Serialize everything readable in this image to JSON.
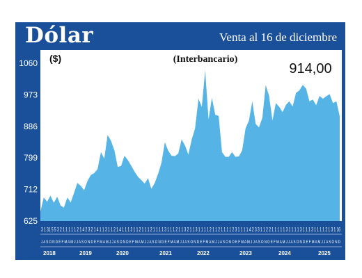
{
  "header": {
    "title": "Dólar",
    "subtitle": "Venta al 16 de diciembre"
  },
  "chart_data": {
    "type": "area",
    "title": "(Interbancario)",
    "unit_label": "($)",
    "last_value_label": "914,00",
    "y_ticks": [
      "1060",
      "973",
      "886",
      "799",
      "712",
      "625"
    ],
    "ylim": [
      625,
      1060
    ],
    "x_year_labels": [
      "2018",
      "2019",
      "2020",
      "2021",
      "2022",
      "2023",
      "2024",
      "2025"
    ],
    "x_day_labels": "3 1 31 5 5 3 2 1 1 1 1 1 2 1 4 2 3 2 1 4 1 1 3 1 1 2 1 4 1 1 1 3 1 1 2 1 1 1 2 1 1 1 1 3 1 1 1 2 1 1 3 2 1 1 3 1 1 1 1 2 1 1 2 1 1 1 1 2 3 1 1 1 1 4 2 3 3 1 1 2 2 1 1 1 1 1 3 1 1 1 1 3 1 1 1 3 1 1 1 1 2 1 3 1 16",
    "x_month_labels": "J A S O N D E F M A M J J A S O N D E F M A M J J A S O N D E F M A M J J A S O N D E F M A M J J A S O N D E F M A M J J A S O N D E F M A M J J A S O N D E F M A M J J A S O N D E F M A M J J A S O N D",
    "x": [
      "2018-07",
      "2018-08",
      "2018-09",
      "2018-10",
      "2018-11",
      "2018-12",
      "2019-01",
      "2019-02",
      "2019-03",
      "2019-04",
      "2019-05",
      "2019-06",
      "2019-07",
      "2019-08",
      "2019-09",
      "2019-10",
      "2019-11",
      "2019-12",
      "2020-01",
      "2020-02",
      "2020-03",
      "2020-04",
      "2020-05",
      "2020-06",
      "2020-07",
      "2020-08",
      "2020-09",
      "2020-10",
      "2020-11",
      "2020-12",
      "2021-01",
      "2021-02",
      "2021-03",
      "2021-04",
      "2021-05",
      "2021-06",
      "2021-07",
      "2021-08",
      "2021-09",
      "2021-10",
      "2021-11",
      "2021-12",
      "2022-01",
      "2022-02",
      "2022-03",
      "2022-04",
      "2022-05",
      "2022-06",
      "2022-07",
      "2022-08",
      "2022-09",
      "2022-10",
      "2022-11",
      "2022-12",
      "2023-01",
      "2023-02",
      "2023-03",
      "2023-04",
      "2023-05",
      "2023-06",
      "2023-07",
      "2023-08",
      "2023-09",
      "2023-10",
      "2023-11",
      "2023-12",
      "2024-01",
      "2024-02",
      "2024-03",
      "2024-04",
      "2024-05",
      "2024-06",
      "2024-07",
      "2024-08",
      "2024-09",
      "2024-10",
      "2024-11",
      "2024-12",
      "2025-01",
      "2025-02",
      "2025-03",
      "2025-04",
      "2025-05",
      "2025-06",
      "2025-07",
      "2025-08",
      "2025-09",
      "2025-10",
      "2025-11",
      "2025-12"
    ],
    "series": [
      {
        "values": [
          650,
          690,
          678,
          695,
          675,
          692,
          668,
          662,
          690,
          676,
          702,
          730,
          722,
          710,
          735,
          752,
          757,
          768,
          815,
          797,
          862,
          846,
          820,
          774,
          777,
          805,
          793,
          778,
          761,
          747,
          738,
          728,
          743,
          714,
          730,
          755,
          785,
          842,
          819,
          805,
          804,
          811,
          850,
          833,
          808,
          850,
          880,
          962,
          940,
          1040,
          905,
          965,
          918,
          915,
          815,
          802,
          802,
          815,
          802,
          803,
          820,
          880,
          902,
          955,
          893,
          883,
          910,
          1000,
          970,
          902,
          950,
          940,
          925,
          945,
          955,
          941,
          978,
          985,
          1000,
          990,
          955,
          960,
          944,
          970,
          962,
          969,
          975,
          950,
          955,
          914
        ]
      }
    ]
  }
}
